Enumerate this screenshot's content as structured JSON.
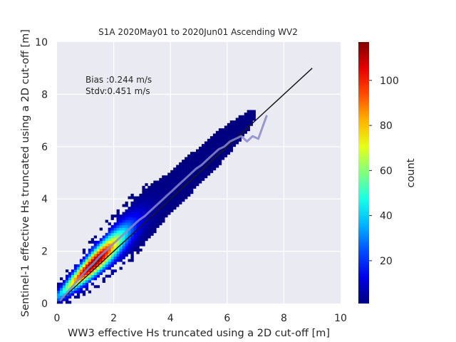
{
  "chart_data": {
    "type": "heatmap",
    "title": "S1A 2020May01 to 2020Jun01 Ascending WV2",
    "xlabel": "WW3 effective Hs truncated using a 2D cut-off [m]",
    "ylabel": "Sentinel-1 effective Hs truncated using a 2D cut-off [m]",
    "xlim": [
      0,
      10
    ],
    "ylim": [
      0,
      10
    ],
    "xticks": [
      "0",
      "2",
      "4",
      "6",
      "8",
      "10"
    ],
    "yticks": [
      "0",
      "2",
      "4",
      "6",
      "8",
      "10"
    ],
    "grid": true,
    "annotations": [
      "Bias :0.244 m/s",
      "Stdv:0.451 m/s"
    ],
    "colorbar": {
      "label": "count",
      "colormap": "jet",
      "range": [
        1,
        117
      ],
      "ticks": [
        "20",
        "40",
        "60",
        "80",
        "100"
      ]
    },
    "identity_line": {
      "x": [
        0,
        9
      ],
      "y": [
        0,
        9
      ],
      "color": "#1a1a1a"
    },
    "binned_mean": {
      "color": "#8a8ac8",
      "x": [
        0.1,
        0.3,
        0.5,
        0.7,
        0.9,
        1.1,
        1.3,
        1.5,
        1.7,
        1.9,
        2.1,
        2.3,
        2.5,
        2.7,
        2.9,
        3.1,
        3.3,
        3.5,
        3.7,
        3.9,
        4.1,
        4.3,
        4.5,
        4.7,
        4.9,
        5.1,
        5.3,
        5.5,
        5.7,
        5.9,
        6.1,
        6.3,
        6.5,
        6.7,
        6.9,
        7.1,
        7.3,
        7.4
      ],
      "y": [
        0.1,
        0.35,
        0.6,
        0.85,
        1.1,
        1.35,
        1.55,
        1.8,
        2.0,
        2.2,
        2.4,
        2.6,
        2.8,
        3.0,
        3.2,
        3.35,
        3.55,
        3.75,
        3.95,
        4.15,
        4.35,
        4.55,
        4.75,
        4.95,
        5.15,
        5.3,
        5.5,
        5.7,
        5.9,
        6.0,
        6.2,
        6.3,
        6.4,
        6.2,
        6.4,
        6.3,
        6.9,
        7.2
      ]
    },
    "density_model": {
      "x_range": [
        0,
        7.6
      ],
      "bin_width": 0.1,
      "y_offset": 0.25,
      "spread_base": 0.18,
      "spread_slope": 0.1,
      "peak_x": 1.3,
      "peak_count": 117
    }
  }
}
